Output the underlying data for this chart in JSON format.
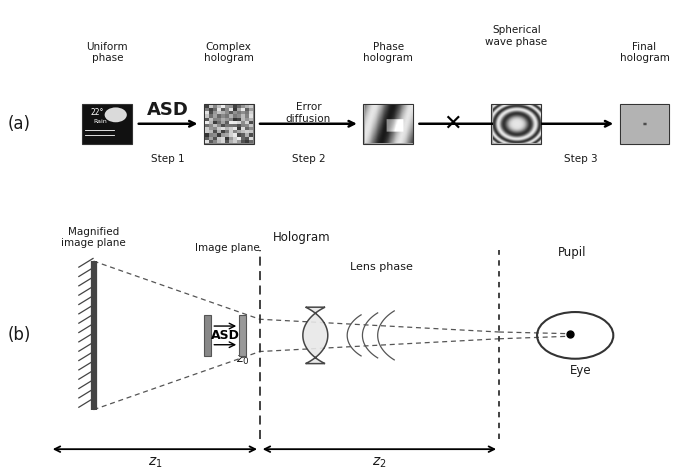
{
  "fig_width": 6.93,
  "fig_height": 4.67,
  "dpi": 100,
  "bg_color": "#ffffff",
  "panel_a_label": "(a)",
  "panel_b_label": "(b)",
  "asd_label": "ASD",
  "error_diffusion_label": "Error\ndiffusion",
  "magnified_label": "Magnified\nimage plane",
  "hologram_label": "Hologram",
  "image_plane_label": "Image plane",
  "lens_phase_label": "Lens phase",
  "pupil_label": "Pupil",
  "eye_label": "Eye",
  "asd_b_label": "ASD",
  "z0_label": "$z_0$",
  "z1_label": "$z_1$",
  "z2_label": "$z_2$",
  "text_color": "#1a1a1a",
  "step1": "Step 1",
  "step2": "Step 2",
  "step3": "Step 3",
  "uniform_phase": "Uniform\nphase",
  "complex_hologram": "Complex\nhologram",
  "phase_hologram": "Phase\nhologram",
  "spherical_wave": "Spherical\nwave phase",
  "final_hologram": "Final\nhologram"
}
